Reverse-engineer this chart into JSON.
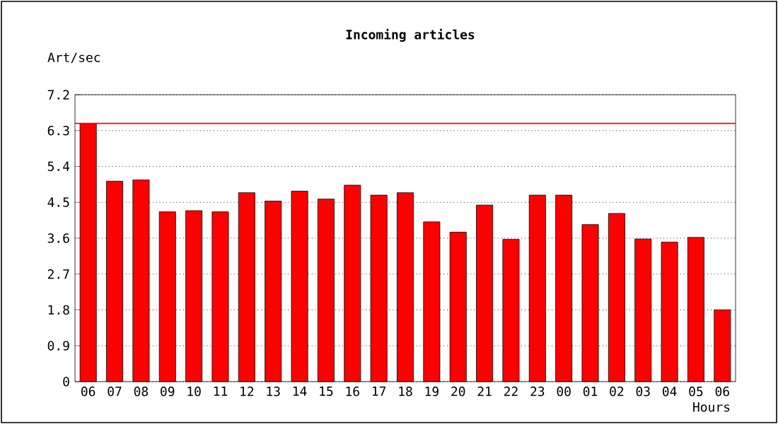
{
  "chart_data": {
    "type": "bar",
    "title": "Incoming articles",
    "xlabel": "Hours",
    "ylabel": "Art/sec",
    "categories": [
      "06",
      "07",
      "08",
      "09",
      "10",
      "11",
      "12",
      "13",
      "14",
      "15",
      "16",
      "17",
      "18",
      "19",
      "20",
      "21",
      "22",
      "23",
      "00",
      "01",
      "02",
      "03",
      "04",
      "05",
      "06"
    ],
    "values": [
      6.48,
      5.03,
      5.06,
      4.26,
      4.29,
      4.26,
      4.74,
      4.53,
      4.78,
      4.58,
      4.93,
      4.68,
      4.74,
      4.01,
      3.75,
      4.43,
      3.57,
      4.68,
      4.68,
      3.94,
      4.22,
      3.58,
      3.5,
      3.62,
      1.8
    ],
    "color": "#ff0000",
    "ylim": [
      0,
      7.2
    ],
    "yticks": [
      0,
      0.9,
      1.8,
      2.7,
      3.6,
      4.5,
      5.4,
      6.3,
      7.2
    ],
    "grid": "y",
    "ref_lines": [
      {
        "axis": "y",
        "value": 6.48,
        "color": "#ff0000"
      }
    ]
  }
}
